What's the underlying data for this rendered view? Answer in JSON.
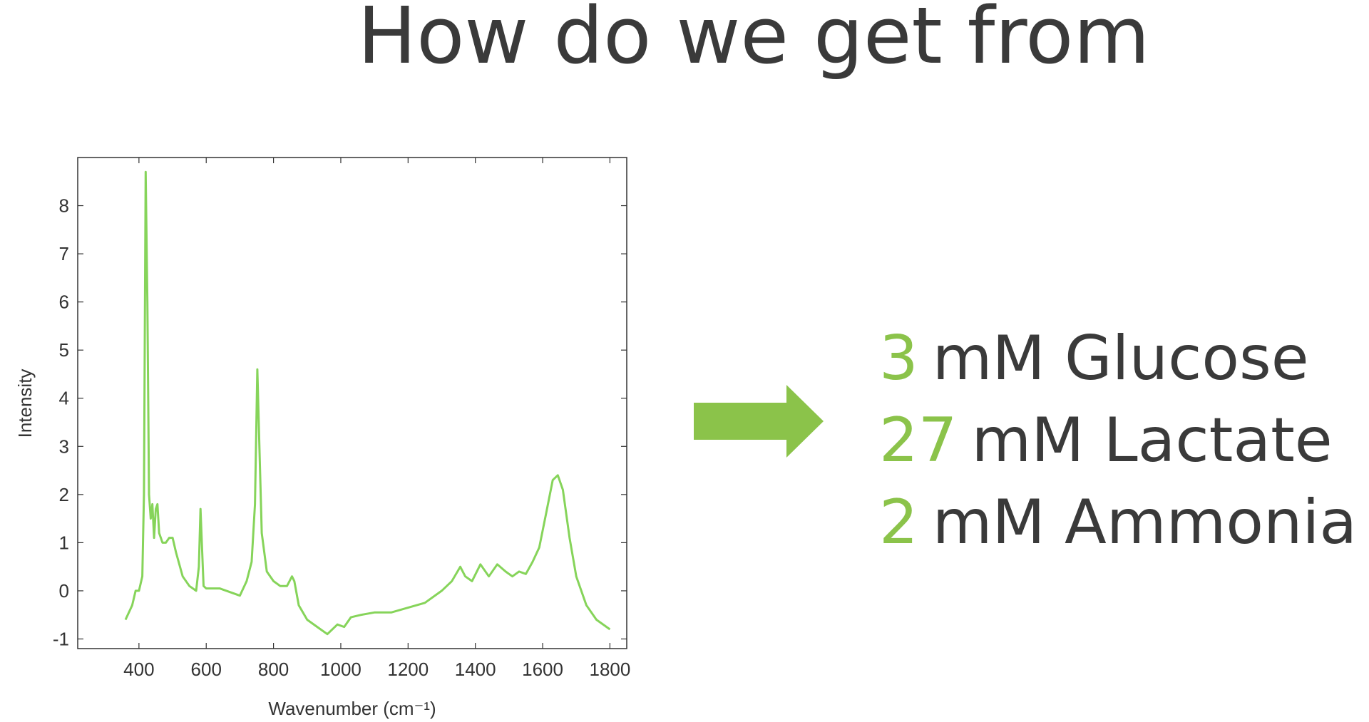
{
  "title": "How do we get from",
  "chart_data": {
    "type": "line",
    "xlabel": "Wavenumber (cm⁻¹)",
    "ylabel": "Intensity",
    "xlim": [
      218,
      1850
    ],
    "ylim": [
      -1.2,
      9
    ],
    "xticks": [
      400,
      600,
      800,
      1000,
      1200,
      1400,
      1600,
      1800
    ],
    "yticks": [
      -1,
      0,
      1,
      2,
      3,
      4,
      5,
      6,
      7,
      8
    ],
    "series": [
      {
        "color": "#86d45a",
        "x": [
          360,
          380,
          390,
          400,
          410,
          415,
          420,
          425,
          430,
          435,
          440,
          445,
          450,
          455,
          460,
          470,
          480,
          490,
          500,
          510,
          530,
          550,
          570,
          578,
          583,
          588,
          592,
          600,
          620,
          640,
          660,
          680,
          700,
          720,
          735,
          745,
          752,
          758,
          765,
          780,
          800,
          820,
          840,
          855,
          862,
          875,
          900,
          930,
          960,
          990,
          1010,
          1030,
          1060,
          1100,
          1150,
          1200,
          1250,
          1300,
          1330,
          1355,
          1370,
          1390,
          1415,
          1440,
          1465,
          1490,
          1510,
          1530,
          1550,
          1570,
          1590,
          1610,
          1630,
          1645,
          1660,
          1680,
          1700,
          1730,
          1760,
          1800
        ],
        "values": [
          -0.6,
          -0.3,
          0,
          0,
          0.3,
          2,
          8.7,
          6,
          2,
          1.5,
          1.8,
          1.1,
          1.7,
          1.8,
          1.2,
          1.0,
          1.0,
          1.1,
          1.1,
          0.8,
          0.3,
          0.1,
          0,
          0.5,
          1.7,
          0.8,
          0.1,
          0.05,
          0.05,
          0.05,
          0,
          -0.05,
          -0.1,
          0.2,
          0.6,
          1.8,
          4.6,
          3,
          1.2,
          0.4,
          0.2,
          0.1,
          0.1,
          0.3,
          0.2,
          -0.3,
          -0.6,
          -0.75,
          -0.9,
          -0.7,
          -0.75,
          -0.55,
          -0.5,
          -0.45,
          -0.45,
          -0.35,
          -0.25,
          0,
          0.2,
          0.5,
          0.3,
          0.2,
          0.55,
          0.3,
          0.55,
          0.4,
          0.3,
          0.4,
          0.35,
          0.6,
          0.9,
          1.6,
          2.3,
          2.4,
          2.1,
          1.1,
          0.3,
          -0.3,
          -0.6,
          -0.8
        ]
      }
    ]
  },
  "results": [
    {
      "amount": "3",
      "label": "mM Glucose"
    },
    {
      "amount": "27",
      "label": "mM Lactate"
    },
    {
      "amount": "2",
      "label": "mM Ammonia"
    }
  ]
}
